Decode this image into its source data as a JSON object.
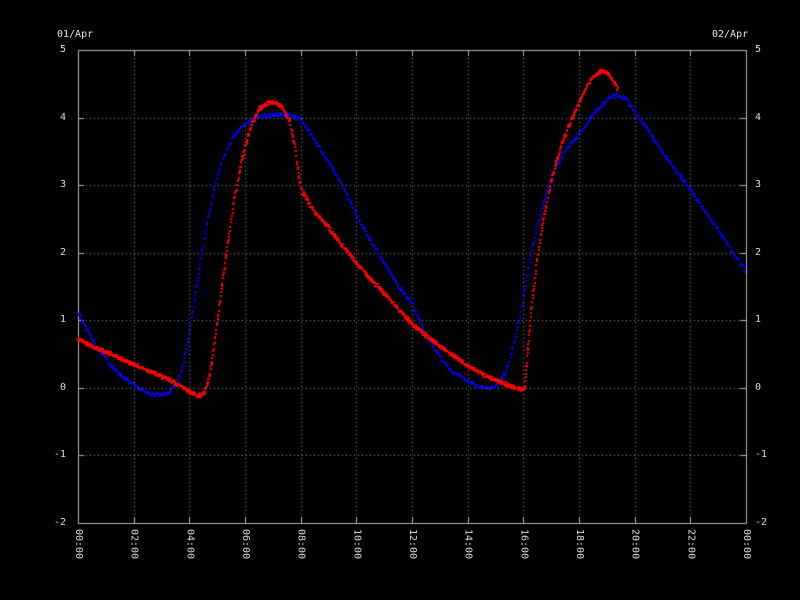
{
  "colors": {
    "background": "#000000",
    "grid": "#8c8c8c",
    "border": "#b4b4b4",
    "tick_text": "#dcdcdc",
    "series_red": "#ff0000",
    "series_blue": "#0000ee"
  },
  "chart_data": {
    "type": "line",
    "title": "",
    "xlabel": "",
    "ylabel": "",
    "grid": "on",
    "legend": "none",
    "x": {
      "date_start_label": "01/Apr",
      "date_end_label": "02/Apr",
      "tick_labels": [
        "00:00",
        "02:00",
        "04:00",
        "06:00",
        "08:00",
        "10:00",
        "12:00",
        "14:00",
        "16:00",
        "18:00",
        "20:00",
        "22:00",
        "00:00"
      ],
      "tick_hours": [
        0,
        2,
        4,
        6,
        8,
        10,
        12,
        14,
        16,
        18,
        20,
        22,
        24
      ],
      "range_hours": [
        0,
        24
      ],
      "tick_rotation_deg": 90
    },
    "y_left": {
      "tick_labels": [
        "5",
        "4",
        "3",
        "2",
        "1",
        "0",
        "-1",
        "-2"
      ],
      "tick_values": [
        5,
        4,
        3,
        2,
        1,
        0,
        -1,
        -2
      ],
      "range": [
        -2,
        5
      ]
    },
    "y_right": {
      "tick_labels": [
        "5",
        "4",
        "3",
        "2",
        "1",
        "0",
        "-1",
        "-2"
      ],
      "tick_values": [
        5,
        4,
        3,
        2,
        1,
        0,
        -1,
        -2
      ],
      "range": [
        -2,
        5
      ]
    },
    "series": [
      {
        "name": "blue-series",
        "color": "#0000ee",
        "marker_px": 2,
        "sample_step_h": 0.03,
        "noise": 0.025,
        "seed": 7,
        "points": [
          [
            0,
            1.12
          ],
          [
            0.3,
            0.88
          ],
          [
            0.6,
            0.66
          ],
          [
            0.9,
            0.48
          ],
          [
            1.2,
            0.33
          ],
          [
            1.5,
            0.2
          ],
          [
            1.8,
            0.1
          ],
          [
            2.1,
            0.01
          ],
          [
            2.4,
            -0.06
          ],
          [
            2.7,
            -0.1
          ],
          [
            3.0,
            -0.11
          ],
          [
            3.3,
            -0.07
          ],
          [
            3.55,
            0.05
          ],
          [
            3.75,
            0.3
          ],
          [
            3.95,
            0.7
          ],
          [
            4.15,
            1.2
          ],
          [
            4.4,
            1.85
          ],
          [
            4.65,
            2.45
          ],
          [
            4.9,
            2.95
          ],
          [
            5.2,
            3.38
          ],
          [
            5.5,
            3.65
          ],
          [
            5.8,
            3.82
          ],
          [
            6.1,
            3.93
          ],
          [
            6.4,
            4.0
          ],
          [
            6.8,
            4.03
          ],
          [
            7.2,
            4.05
          ],
          [
            7.6,
            4.04
          ],
          [
            8.0,
            3.98
          ],
          [
            8.3,
            3.8
          ],
          [
            8.6,
            3.6
          ],
          [
            9.0,
            3.34
          ],
          [
            9.5,
            3.0
          ],
          [
            10.0,
            2.56
          ],
          [
            10.5,
            2.19
          ],
          [
            11.0,
            1.85
          ],
          [
            11.5,
            1.5
          ],
          [
            12.0,
            1.26
          ],
          [
            12.5,
            0.78
          ],
          [
            13.0,
            0.47
          ],
          [
            13.5,
            0.22
          ],
          [
            14.0,
            0.1
          ],
          [
            14.4,
            0.02
          ],
          [
            14.8,
            -0.02
          ],
          [
            15.1,
            0.05
          ],
          [
            15.4,
            0.25
          ],
          [
            15.7,
            0.7
          ],
          [
            15.95,
            1.2
          ],
          [
            16.2,
            1.8
          ],
          [
            16.5,
            2.4
          ],
          [
            16.8,
            2.85
          ],
          [
            17.1,
            3.2
          ],
          [
            17.5,
            3.5
          ],
          [
            18.0,
            3.75
          ],
          [
            18.4,
            3.98
          ],
          [
            18.8,
            4.18
          ],
          [
            19.1,
            4.3
          ],
          [
            19.4,
            4.33
          ],
          [
            19.7,
            4.28
          ],
          [
            20.0,
            4.08
          ],
          [
            20.5,
            3.8
          ],
          [
            21.0,
            3.5
          ],
          [
            21.5,
            3.2
          ],
          [
            22.0,
            2.93
          ],
          [
            22.5,
            2.63
          ],
          [
            23.0,
            2.34
          ],
          [
            23.5,
            2.03
          ],
          [
            24.0,
            1.72
          ]
        ]
      },
      {
        "name": "red-series",
        "color": "#ff0000",
        "marker_px": 2,
        "sample_step_h": 0.016,
        "noise": 0.03,
        "seed": 42,
        "points": [
          [
            0,
            0.72
          ],
          [
            0.5,
            0.62
          ],
          [
            1,
            0.53
          ],
          [
            1.5,
            0.44
          ],
          [
            2,
            0.35
          ],
          [
            2.5,
            0.26
          ],
          [
            3,
            0.17
          ],
          [
            3.5,
            0.07
          ],
          [
            3.8,
            0.01
          ],
          [
            4.1,
            -0.08
          ],
          [
            4.35,
            -0.12
          ],
          [
            4.55,
            -0.08
          ],
          [
            4.75,
            0.2
          ],
          [
            5.0,
            0.95
          ],
          [
            5.3,
            1.9
          ],
          [
            5.6,
            2.75
          ],
          [
            5.9,
            3.4
          ],
          [
            6.2,
            3.85
          ],
          [
            6.5,
            4.12
          ],
          [
            6.8,
            4.21
          ],
          [
            7.1,
            4.22
          ],
          [
            7.35,
            4.15
          ],
          [
            7.6,
            3.95
          ],
          [
            7.8,
            3.55
          ],
          [
            8.0,
            2.95
          ],
          [
            8.5,
            2.6
          ],
          [
            9.0,
            2.38
          ],
          [
            9.5,
            2.1
          ],
          [
            10.0,
            1.85
          ],
          [
            10.5,
            1.62
          ],
          [
            11.0,
            1.4
          ],
          [
            11.5,
            1.17
          ],
          [
            12.0,
            0.95
          ],
          [
            12.5,
            0.78
          ],
          [
            13.0,
            0.62
          ],
          [
            13.5,
            0.47
          ],
          [
            14.0,
            0.33
          ],
          [
            14.5,
            0.21
          ],
          [
            15.0,
            0.11
          ],
          [
            15.5,
            0.03
          ],
          [
            15.9,
            -0.02
          ],
          [
            16.05,
            0.0
          ],
          [
            16.15,
            0.5
          ],
          [
            16.3,
            1.2
          ],
          [
            16.5,
            1.9
          ],
          [
            16.75,
            2.55
          ],
          [
            17.0,
            3.05
          ],
          [
            17.3,
            3.5
          ],
          [
            17.6,
            3.85
          ],
          [
            17.9,
            4.12
          ],
          [
            18.2,
            4.4
          ],
          [
            18.5,
            4.6
          ],
          [
            18.8,
            4.7
          ],
          [
            19.0,
            4.66
          ],
          [
            19.2,
            4.56
          ],
          [
            19.4,
            4.42
          ]
        ]
      }
    ]
  }
}
